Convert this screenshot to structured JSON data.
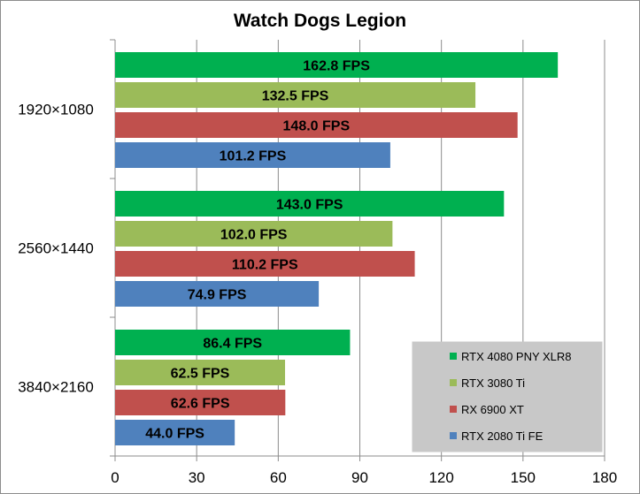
{
  "chart_data": {
    "type": "bar",
    "orientation": "horizontal",
    "title": "Watch Dogs Legion",
    "categories": [
      "1920×1080",
      "2560×1440",
      "3840×2160"
    ],
    "series": [
      {
        "name": "RTX 4080 PNY XLR8",
        "color": "#00b050",
        "values": [
          162.8,
          143.0,
          86.4
        ],
        "labels": [
          "162.8 FPS",
          "143.0 FPS",
          "86.4 FPS"
        ]
      },
      {
        "name": "RTX 3080 Ti",
        "color": "#9bbb59",
        "values": [
          132.5,
          102.0,
          62.5
        ],
        "labels": [
          "132.5 FPS",
          "102.0 FPS",
          "62.5 FPS"
        ]
      },
      {
        "name": "RX 6900 XT",
        "color": "#c0504d",
        "values": [
          148.0,
          110.2,
          62.6
        ],
        "labels": [
          "148.0 FPS",
          "110.2 FPS",
          "62.6 FPS"
        ]
      },
      {
        "name": "RTX 2080 Ti FE",
        "color": "#4f81bd",
        "values": [
          101.2,
          74.9,
          44.0
        ],
        "labels": [
          "101.2 FPS",
          "74.9 FPS",
          "44.0 FPS"
        ]
      }
    ],
    "xlim": [
      0,
      180
    ],
    "xticks": [
      "0",
      "30",
      "60",
      "90",
      "120",
      "150",
      "180"
    ],
    "grid": true,
    "legend": "bottom-right"
  }
}
